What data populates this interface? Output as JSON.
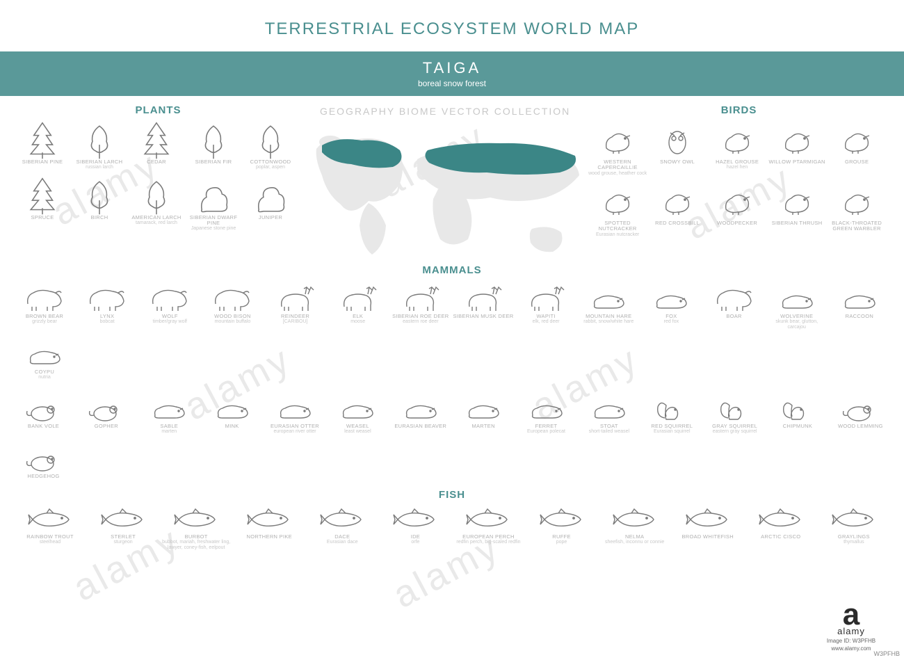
{
  "colors": {
    "accent": "#4a8f8f",
    "banner_bg": "#5a9999",
    "title": "#4a8f8f",
    "map_land": "#e8e8e8",
    "map_highlight": "#3b8686",
    "icon_stroke": "#7a7a7a",
    "label_primary": "#b0b0b0",
    "label_secondary": "#c8c8c8",
    "map_title": "#c8c8c8"
  },
  "typography": {
    "main_title_size": 24,
    "banner_title_size": 22,
    "section_title_size": 15,
    "label_primary_size": 7.5,
    "label_secondary_size": 7
  },
  "main_title": "TERRESTRIAL ECOSYSTEM WORLD MAP",
  "banner": {
    "title": "TAIGA",
    "subtitle": "boreal snow forest"
  },
  "map_title": "GEOGRAPHY BIOME VECTOR COLLECTION",
  "sections": {
    "plants": "PLANTS",
    "birds": "BIRDS",
    "mammals": "MAMMALS",
    "fish": "FISH"
  },
  "plants": [
    {
      "name": "SIBERIAN PINE",
      "sub": ""
    },
    {
      "name": "SIBERIAN LARCH",
      "sub": "russian larch"
    },
    {
      "name": "CEDAR",
      "sub": ""
    },
    {
      "name": "SIBERIAN FIR",
      "sub": ""
    },
    {
      "name": "COTTONWOOD",
      "sub": "poplar, aspen"
    },
    {
      "name": "SPRUCE",
      "sub": ""
    },
    {
      "name": "BIRCH",
      "sub": ""
    },
    {
      "name": "AMERICAN LARCH",
      "sub": "tamarack, red larch"
    },
    {
      "name": "SIBERIAN DWARF PINE",
      "sub": "Japanese stone pine"
    },
    {
      "name": "JUNIPER",
      "sub": ""
    }
  ],
  "birds": [
    {
      "name": "WESTERN CAPERCAILLIE",
      "sub": "wood grouse, heather cock"
    },
    {
      "name": "SNOWY OWL",
      "sub": ""
    },
    {
      "name": "HAZEL GROUSE",
      "sub": "hazel hen"
    },
    {
      "name": "WILLOW PTARMIGAN",
      "sub": ""
    },
    {
      "name": "GROUSE",
      "sub": ""
    },
    {
      "name": "SPOTTED NUTCRACKER",
      "sub": "Eurasian nutcracker"
    },
    {
      "name": "RED CROSSBILL",
      "sub": ""
    },
    {
      "name": "WOODPECKER",
      "sub": ""
    },
    {
      "name": "SIBERIAN THRUSH",
      "sub": ""
    },
    {
      "name": "BLACK-THROATED GREEN WARBLER",
      "sub": ""
    }
  ],
  "mammals_row1": [
    {
      "name": "BROWN BEAR",
      "sub": "grizzly bear"
    },
    {
      "name": "LYNX",
      "sub": "bobcat"
    },
    {
      "name": "WOLF",
      "sub": "timber/gray wolf"
    },
    {
      "name": "WOOD BISON",
      "sub": "mountain buffalo"
    },
    {
      "name": "REINDEER",
      "sub": "[CARIBOU]"
    },
    {
      "name": "ELK",
      "sub": "moose"
    },
    {
      "name": "SIBERIAN ROE DEER",
      "sub": "eastern roe deer"
    },
    {
      "name": "SIBERIAN MUSK DEER",
      "sub": ""
    },
    {
      "name": "WAPITI",
      "sub": "elk, red deer"
    },
    {
      "name": "MOUNTAIN HARE",
      "sub": "rabbit, snow/white hare"
    },
    {
      "name": "FOX",
      "sub": "red fox"
    },
    {
      "name": "BOAR",
      "sub": ""
    },
    {
      "name": "WOLVERINE",
      "sub": "skunk bear, glutton, carcajou"
    },
    {
      "name": "RACCOON",
      "sub": ""
    },
    {
      "name": "COYPU",
      "sub": "nutria"
    }
  ],
  "mammals_row2": [
    {
      "name": "BANK VOLE",
      "sub": ""
    },
    {
      "name": "GOPHER",
      "sub": ""
    },
    {
      "name": "SABLE",
      "sub": "marten"
    },
    {
      "name": "MINK",
      "sub": ""
    },
    {
      "name": "EURASIAN OTTER",
      "sub": "european river otter"
    },
    {
      "name": "WEASEL",
      "sub": "least weasel"
    },
    {
      "name": "EURASIAN BEAVER",
      "sub": ""
    },
    {
      "name": "MARTEN",
      "sub": ""
    },
    {
      "name": "FERRET",
      "sub": "European polecat"
    },
    {
      "name": "STOAT",
      "sub": "short-tailed weasel"
    },
    {
      "name": "RED SQUIRREL",
      "sub": "Eurasian squirrel"
    },
    {
      "name": "GRAY SQUIRREL",
      "sub": "eastern gray squirrel"
    },
    {
      "name": "CHIPMUNK",
      "sub": ""
    },
    {
      "name": "WOOD LEMMING",
      "sub": ""
    },
    {
      "name": "HEDGEHOG",
      "sub": ""
    }
  ],
  "fish": [
    {
      "name": "RAINBOW TROUT",
      "sub": "steelhead"
    },
    {
      "name": "STERLET",
      "sub": "sturgeon"
    },
    {
      "name": "BURBOT",
      "sub": "bubbot, mariah, freshwater ling, lawyer, coney-fish, eelpout"
    },
    {
      "name": "NORTHERN PIKE",
      "sub": ""
    },
    {
      "name": "DACE",
      "sub": "Eurasian dace"
    },
    {
      "name": "IDE",
      "sub": "orfe"
    },
    {
      "name": "EUROPEAN PERCH",
      "sub": "redfin perch, big-scaled redfin"
    },
    {
      "name": "RUFFE",
      "sub": "pope"
    },
    {
      "name": "NELMA",
      "sub": "sheefish, inconnu or connie"
    },
    {
      "name": "BROAD WHITEFISH",
      "sub": ""
    },
    {
      "name": "ARCTIC CISCO",
      "sub": ""
    },
    {
      "name": "GRAYLINGS",
      "sub": "thymallus"
    }
  ],
  "watermark": {
    "brand_diag": "alamy",
    "brand_logo_letter": "a",
    "brand_text": "alamy",
    "brand_sub": "Image ID: W3PFHB",
    "url": "www.alamy.com"
  },
  "image_id_corner": "W3PFHB"
}
